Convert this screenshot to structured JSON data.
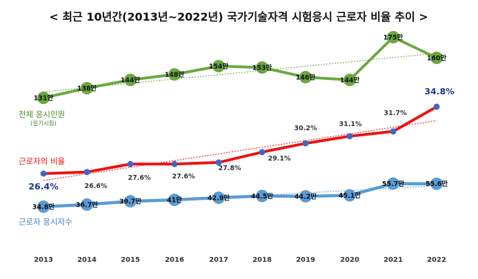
{
  "chart_data": {
    "type": "line",
    "title": "< 최근 10년간(2013년~2022년) 국가기술자격 시험응시 근로자 비율 추이 >",
    "x": [
      "2013",
      "2014",
      "2015",
      "2016",
      "2017",
      "2018",
      "2019",
      "2020",
      "2021",
      "2022"
    ],
    "grid": false,
    "legend": "inline labels on left",
    "series": [
      {
        "name": "전체 응시인원",
        "subname": "(필기시험)",
        "color": "#6aa840",
        "values": [
          131,
          138,
          144,
          148,
          154,
          153,
          146,
          144,
          175,
          160
        ],
        "labels": [
          "131만",
          "138만",
          "144만",
          "148만",
          "154만",
          "153만",
          "146만",
          "144만",
          "175만",
          "160만"
        ],
        "trendline": true
      },
      {
        "name": "근로자의 비율",
        "color": "#ee1111",
        "values": [
          26.4,
          26.6,
          27.6,
          27.6,
          27.8,
          29.1,
          30.2,
          31.1,
          31.7,
          34.8
        ],
        "labels": [
          "26.4%",
          "26.6%",
          "27.6%",
          "27.6%",
          "27.8%",
          "29.1%",
          "30.2%",
          "31.1%",
          "31.7%",
          "34.8%"
        ],
        "trendline": true
      },
      {
        "name": "근로자 응시자수",
        "color": "#5b9bd5",
        "values": [
          34.8,
          36.7,
          39.7,
          41,
          42.9,
          44.5,
          44.2,
          45.1,
          55.7,
          55.6
        ],
        "labels": [
          "34.8만",
          "36.7만",
          "39.7만",
          "41만",
          "42.9만",
          "44.5만",
          "44.2만",
          "45.1만",
          "55.7만",
          "55.6만"
        ],
        "trendline": true
      }
    ]
  }
}
